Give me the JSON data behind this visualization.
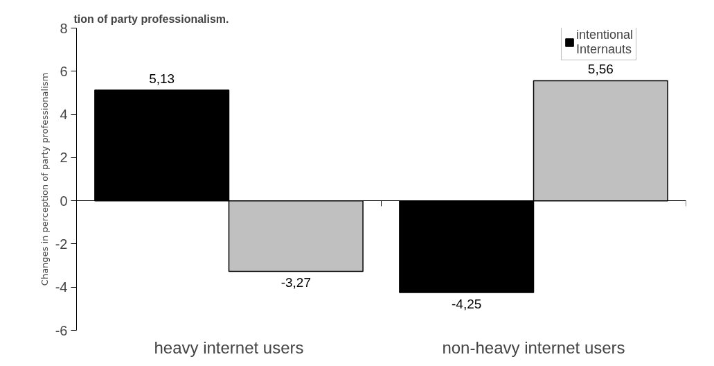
{
  "chart_data": {
    "type": "bar",
    "title": "tion of party professionalism.",
    "ylabel": "Changes in perception of party professionalism",
    "categories": [
      "heavy internet users",
      "non-heavy internet users"
    ],
    "series": [
      {
        "name": "intentional Internauts",
        "color": "#000000",
        "values": [
          5.13,
          -4.25
        ],
        "value_labels": [
          "5,13",
          "-4,25"
        ]
      },
      {
        "color": "#c0c0c0",
        "values": [
          -3.27,
          5.56
        ],
        "value_labels": [
          "-3,27",
          "5,56"
        ]
      }
    ],
    "ylim": [
      -6,
      8
    ],
    "yticks": [
      -6,
      -4,
      -2,
      0,
      2,
      4,
      6,
      8
    ],
    "legend": "top right"
  }
}
